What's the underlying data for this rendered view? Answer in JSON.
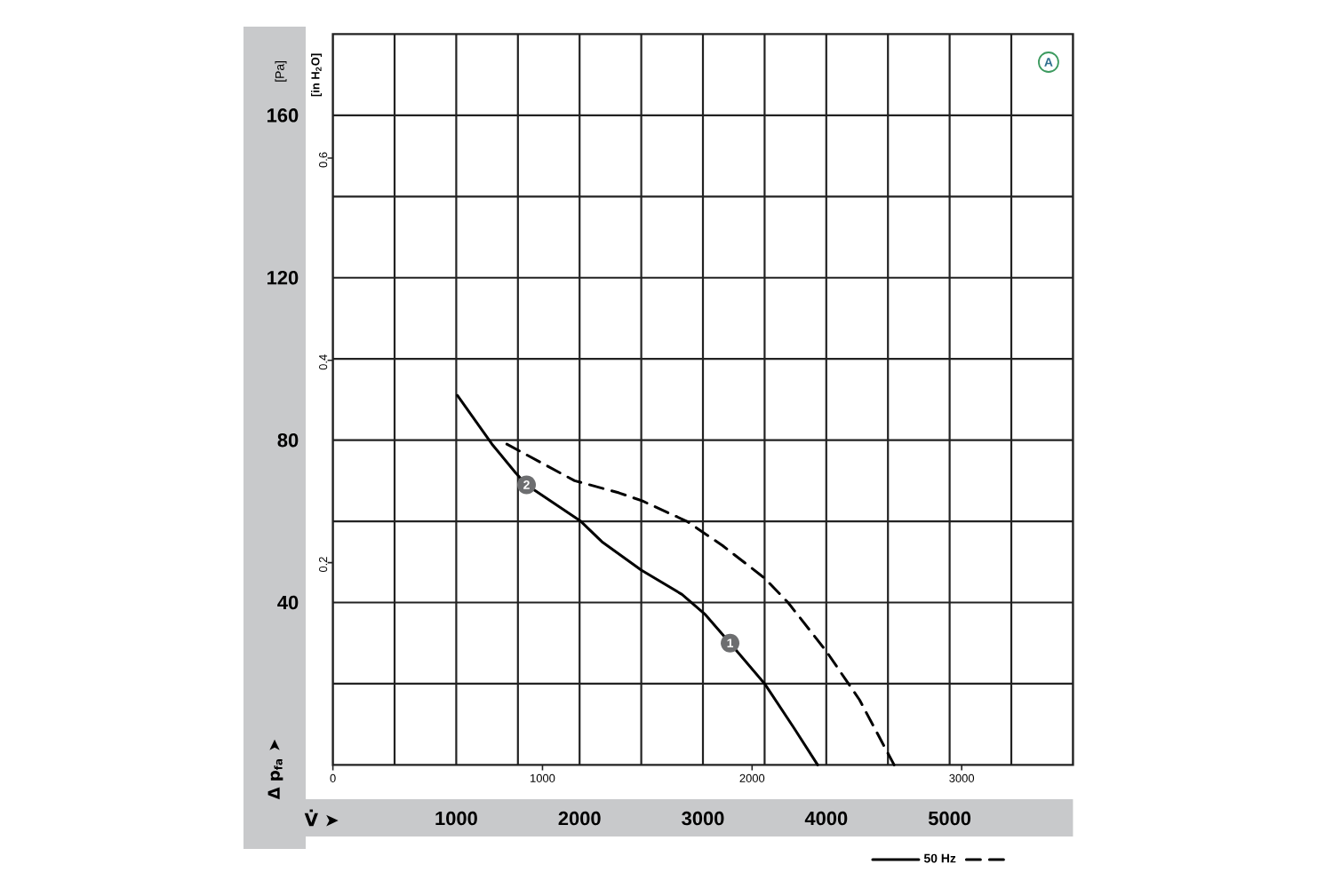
{
  "chart_data": {
    "type": "line",
    "xlabel": "V̇ ➤",
    "ylabel": "Δ p$_{fa}$ ➤",
    "y2label": "[in H$_{2}$O]",
    "annotations": [
      "[Pa]",
      "A",
      {
        "text": "2",
        "x": 1570,
        "y": 69
      },
      {
        "text": "1",
        "x": 3220,
        "y": 30
      }
    ],
    "xlim": [
      0,
      6000
    ],
    "xticks": [
      {
        "value": 500,
        "label": null
      },
      1000,
      {
        "value": 1500,
        "label": null
      },
      2000,
      {
        "value": 2500,
        "label": null
      },
      3000,
      {
        "value": 3500,
        "label": null
      },
      4000,
      {
        "value": 4500,
        "label": null
      },
      5000,
      {
        "value": 5500,
        "label": null
      }
    ],
    "ylim": [
      0,
      180
    ],
    "yticks": [
      {
        "value": 20,
        "label": null
      },
      40,
      {
        "value": 60,
        "label": null
      },
      80,
      {
        "value": 100,
        "label": null
      },
      120,
      {
        "value": 140,
        "label": null
      },
      160
    ],
    "x2lim": [
      0,
      3531
    ],
    "x2ticks": [
      0,
      1000,
      2000,
      3000
    ],
    "y2lim": [
      0,
      0.7226
    ],
    "y2ticks": [
      0.2,
      0.4,
      0.6
    ],
    "grid": true,
    "legend": "bottom right",
    "series": [
      {
        "name": "50 Hz",
        "color": "#000000",
        "line_style": "solid",
        "x": [
          1010,
          1290,
          1480,
          1570,
          2010,
          2180,
          2500,
          2830,
          3020,
          3220,
          3500,
          3740,
          3930
        ],
        "values": [
          91,
          79,
          72,
          69,
          60,
          55,
          48,
          42,
          37,
          30,
          20,
          9,
          0
        ]
      },
      {
        "color": "#000000",
        "line_style": "dashed",
        "x": [
          1410,
          1960,
          2320,
          2510,
          2870,
          3160,
          3500,
          3690,
          4000,
          4270,
          4550
        ],
        "values": [
          79,
          70,
          67,
          65,
          60,
          54,
          46,
          40,
          28,
          16,
          0
        ]
      }
    ]
  }
}
